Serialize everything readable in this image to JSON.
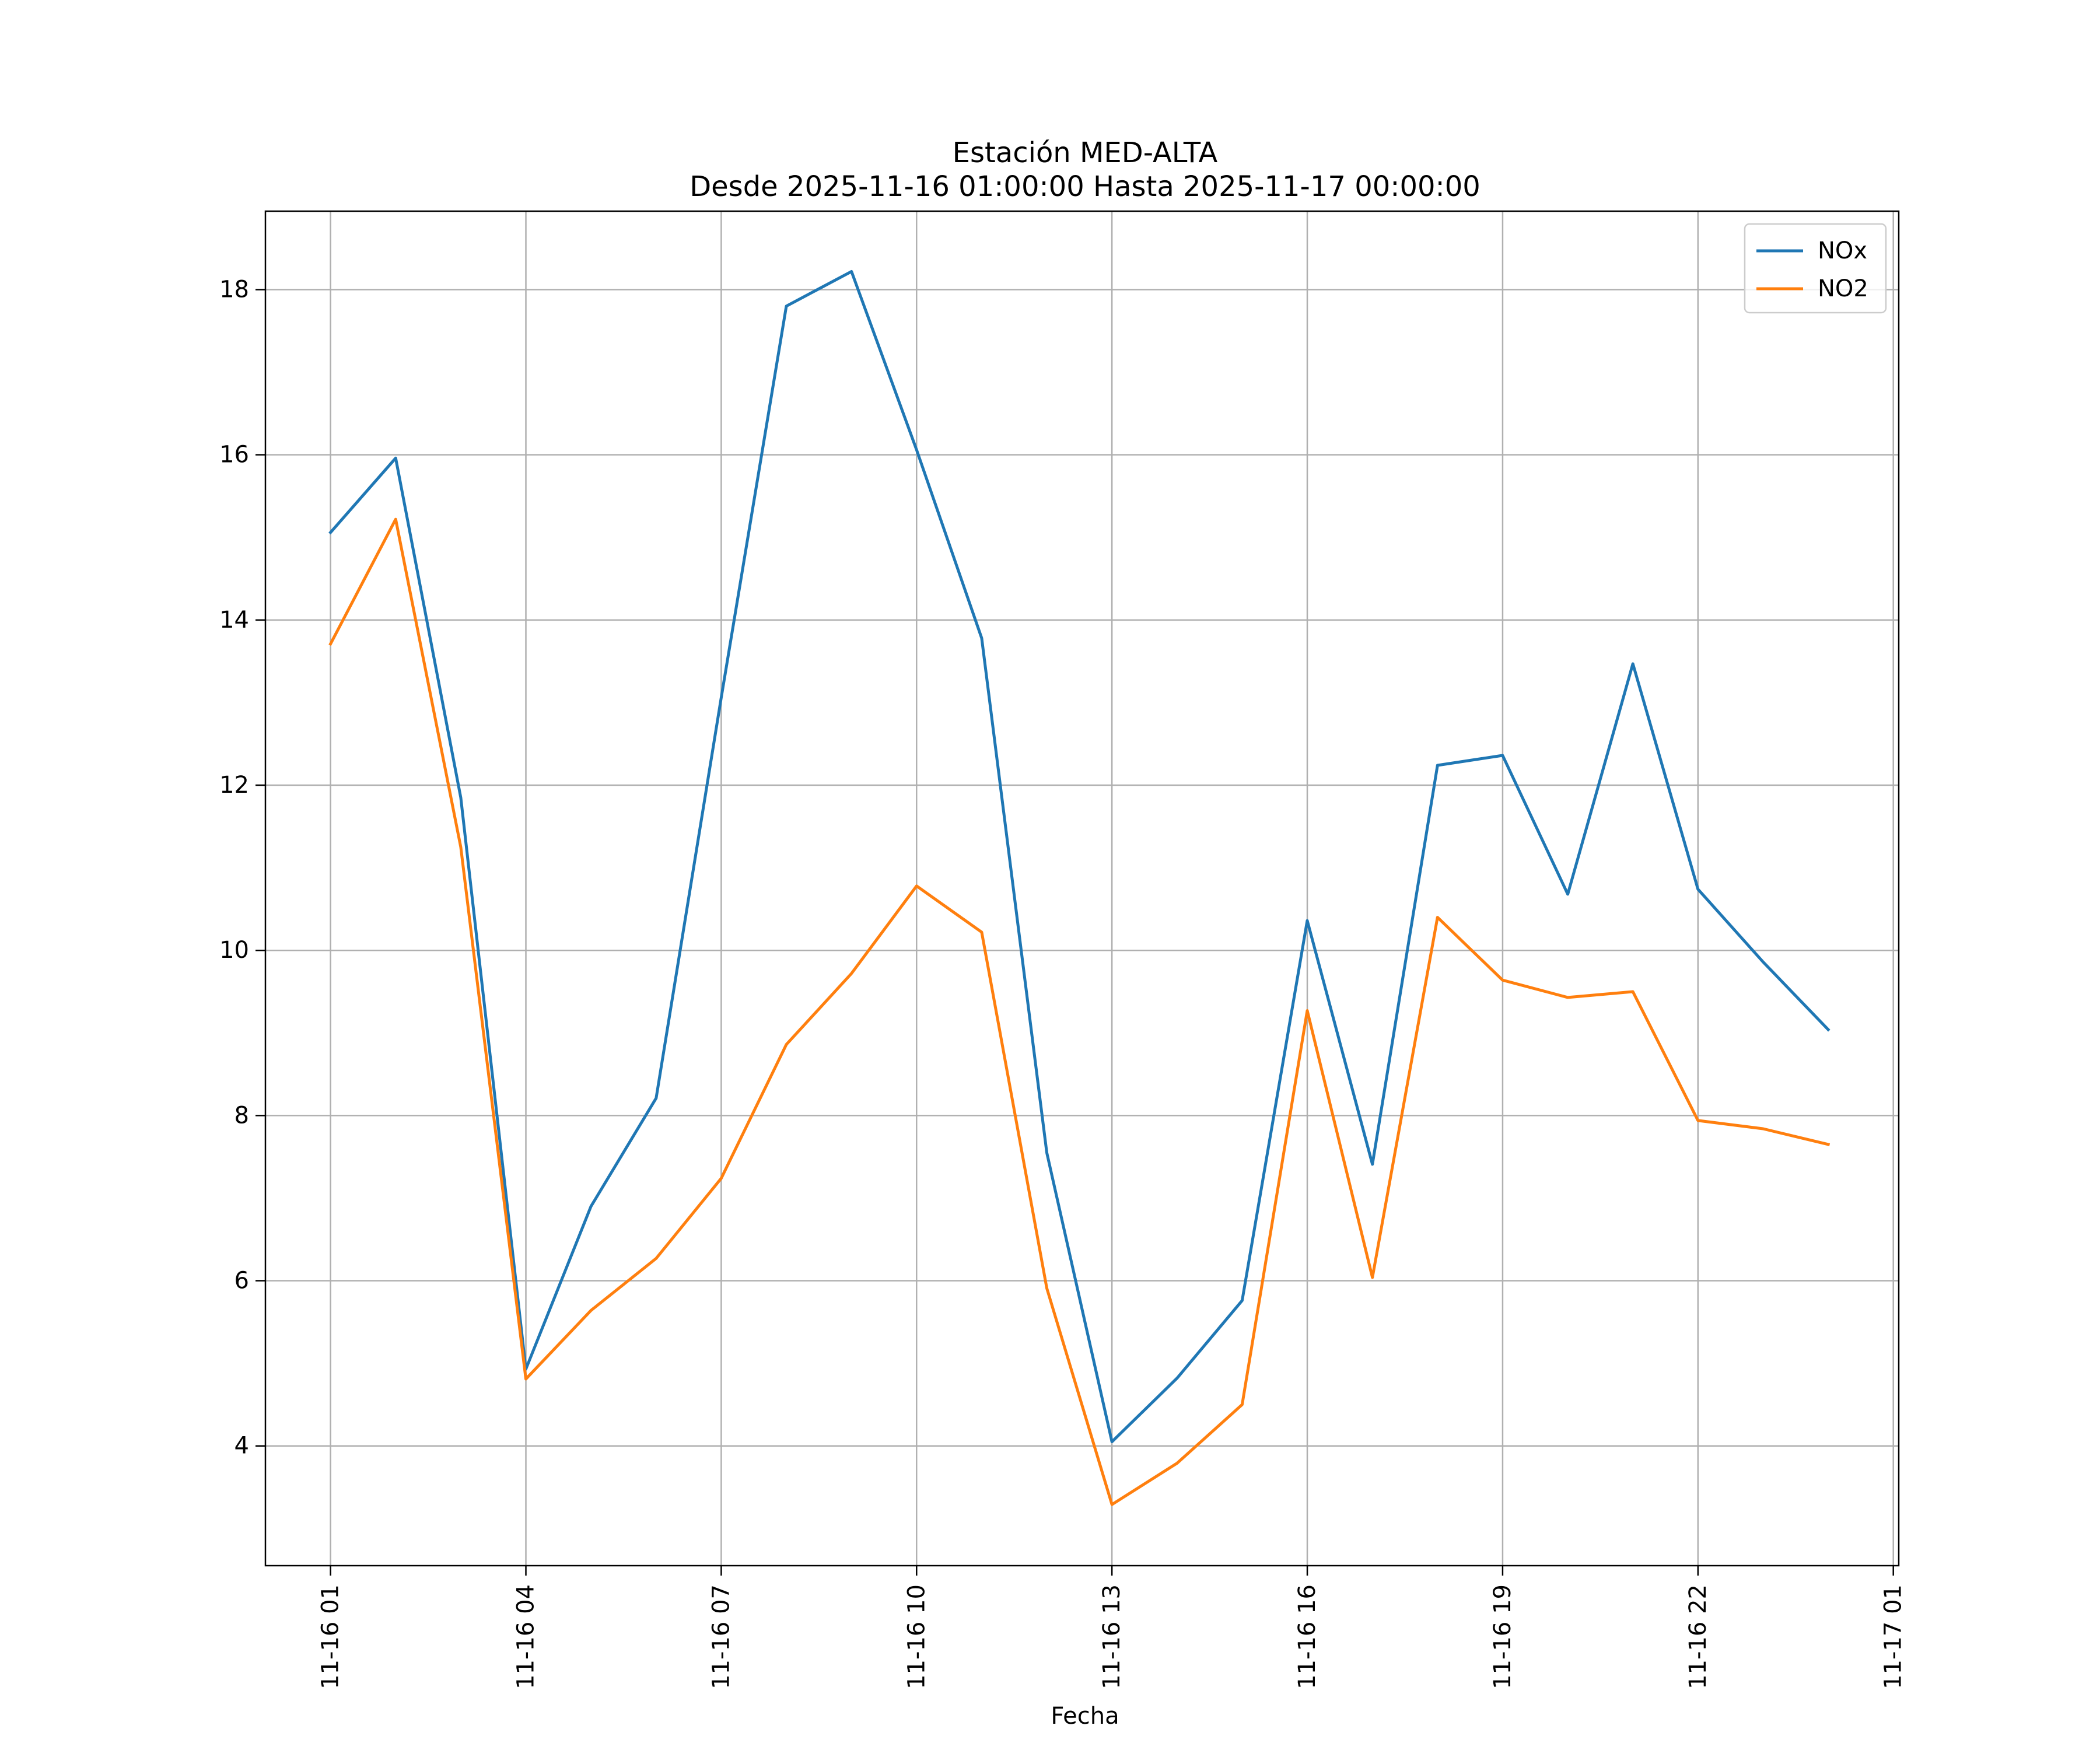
{
  "chart_data": {
    "type": "line",
    "title": "Estación MED-ALTA",
    "subtitle": "Desde 2025-11-16 01:00:00 Hasta 2025-11-17 00:00:00",
    "xlabel": "Fecha",
    "ylabel": "",
    "x": [
      "2025-11-16 01:00",
      "2025-11-16 02:00",
      "2025-11-16 03:00",
      "2025-11-16 04:00",
      "2025-11-16 05:00",
      "2025-11-16 06:00",
      "2025-11-16 07:00",
      "2025-11-16 08:00",
      "2025-11-16 09:00",
      "2025-11-16 10:00",
      "2025-11-16 11:00",
      "2025-11-16 12:00",
      "2025-11-16 13:00",
      "2025-11-16 14:00",
      "2025-11-16 15:00",
      "2025-11-16 16:00",
      "2025-11-16 17:00",
      "2025-11-16 18:00",
      "2025-11-16 19:00",
      "2025-11-16 20:00",
      "2025-11-16 21:00",
      "2025-11-16 22:00",
      "2025-11-16 23:00",
      "2025-11-17 00:00"
    ],
    "x_range": [
      "2025-11-16 00:00",
      "2025-11-17 01:05"
    ],
    "x_ticks": [
      "2025-11-16 01:00",
      "2025-11-16 04:00",
      "2025-11-16 07:00",
      "2025-11-16 10:00",
      "2025-11-16 13:00",
      "2025-11-16 16:00",
      "2025-11-16 19:00",
      "2025-11-16 22:00",
      "2025-11-17 01:00"
    ],
    "x_tick_labels": [
      "11-16 01",
      "11-16 04",
      "11-16 07",
      "11-16 10",
      "11-16 13",
      "11-16 16",
      "11-16 19",
      "11-16 22",
      "11-17 01"
    ],
    "ylim": [
      2.55,
      18.95
    ],
    "y_ticks": [
      4,
      6,
      8,
      10,
      12,
      14,
      16,
      18
    ],
    "y_tick_labels": [
      "4",
      "6",
      "8",
      "10",
      "12",
      "14",
      "16",
      "18"
    ],
    "grid": true,
    "legend_position": "top-right",
    "series": [
      {
        "name": "NOx",
        "color": "#1f77b4",
        "values": [
          15.06,
          15.96,
          11.85,
          4.93,
          6.9,
          8.21,
          13.06,
          17.8,
          18.22,
          16.06,
          13.78,
          7.55,
          4.05,
          4.82,
          5.76,
          10.36,
          7.41,
          12.24,
          12.36,
          10.68,
          13.47,
          10.74,
          9.86,
          9.04
        ]
      },
      {
        "name": "NO2",
        "color": "#ff7f0e",
        "values": [
          13.71,
          15.22,
          11.25,
          4.81,
          5.64,
          6.27,
          7.24,
          8.86,
          9.72,
          10.78,
          10.22,
          5.91,
          3.29,
          3.79,
          4.5,
          9.27,
          6.04,
          10.4,
          9.64,
          9.43,
          9.5,
          7.94,
          7.84,
          7.65
        ]
      }
    ]
  }
}
